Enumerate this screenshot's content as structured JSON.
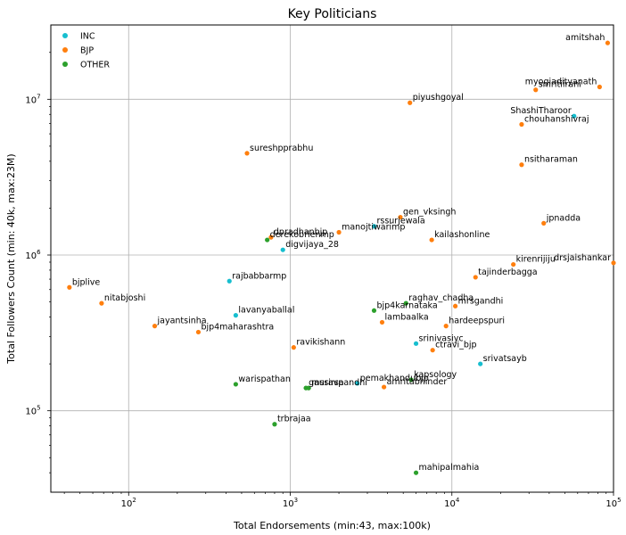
{
  "chart_data": {
    "type": "scatter",
    "title": "Key Politicians",
    "xlabel": "Total Endorsements (min:43, max:100k)",
    "ylabel": "Total Followers Count (min: 40k, max:23M)",
    "x_scale": "log",
    "y_scale": "log",
    "xlim": [
      33,
      100000
    ],
    "ylim": [
      30000,
      30000000
    ],
    "grid": true,
    "legend_position": "top-left",
    "x_ticks": [
      {
        "value": 100,
        "base": "10",
        "exp": "2"
      },
      {
        "value": 1000,
        "base": "10",
        "exp": "3"
      },
      {
        "value": 10000,
        "base": "10",
        "exp": "4"
      },
      {
        "value": 100000,
        "base": "10",
        "exp": "5"
      }
    ],
    "y_ticks": [
      {
        "value": 100000,
        "base": "10",
        "exp": "5"
      },
      {
        "value": 1000000,
        "base": "10",
        "exp": "6"
      },
      {
        "value": 10000000,
        "base": "10",
        "exp": "7"
      }
    ],
    "series": [
      {
        "name": "INC",
        "color": "#17becf",
        "points": [
          {
            "label": "ShashiTharoor",
            "x": 57000,
            "y": 7800000
          },
          {
            "label": "rssurjewala",
            "x": 3300,
            "y": 1530000
          },
          {
            "label": "digvijaya_28",
            "x": 900,
            "y": 1080000
          },
          {
            "label": "rajbabbarmp",
            "x": 420,
            "y": 680000
          },
          {
            "label": "lavanyaballal",
            "x": 460,
            "y": 410000
          },
          {
            "label": "srinivasiyc",
            "x": 6000,
            "y": 270000
          },
          {
            "label": "srivatsayb",
            "x": 15000,
            "y": 200000
          },
          {
            "label": "pemakhandubjp",
            "x": 2600,
            "y": 150000
          }
        ]
      },
      {
        "name": "BJP",
        "color": "#ff7f0e",
        "points": [
          {
            "label": "amitshah",
            "x": 92000,
            "y": 23000000
          },
          {
            "label": "myogiadityanath",
            "x": 82000,
            "y": 12000000
          },
          {
            "label": "smritiirani",
            "x": 33000,
            "y": 11500000
          },
          {
            "label": "piyushgoyal",
            "x": 5500,
            "y": 9500000
          },
          {
            "label": "chouhanshivraj",
            "x": 27000,
            "y": 6900000
          },
          {
            "label": "nsitharaman",
            "x": 27000,
            "y": 3800000
          },
          {
            "label": "sureshpprabhu",
            "x": 540,
            "y": 4500000
          },
          {
            "label": "jpnadda",
            "x": 37000,
            "y": 1600000
          },
          {
            "label": "gen_vksingh",
            "x": 4800,
            "y": 1750000
          },
          {
            "label": "manojtiwarimp",
            "x": 2000,
            "y": 1400000
          },
          {
            "label": "kailashonline",
            "x": 7500,
            "y": 1250000
          },
          {
            "label": "dpradhanbjp",
            "x": 760,
            "y": 1300000
          },
          {
            "label": "drsjaishankar",
            "x": 100000,
            "y": 890000
          },
          {
            "label": "kirenrijiju",
            "x": 24000,
            "y": 870000
          },
          {
            "label": "tajinderbagga",
            "x": 14000,
            "y": 720000
          },
          {
            "label": "bjplive",
            "x": 43,
            "y": 620000
          },
          {
            "label": "nitabjoshi",
            "x": 68,
            "y": 490000
          },
          {
            "label": "jayantsinha",
            "x": 145,
            "y": 350000
          },
          {
            "label": "bjp4maharashtra",
            "x": 270,
            "y": 320000
          },
          {
            "label": "mrsgandhi",
            "x": 10500,
            "y": 470000
          },
          {
            "label": "lambaalka",
            "x": 3700,
            "y": 370000
          },
          {
            "label": "hardeepspuri",
            "x": 9200,
            "y": 350000
          },
          {
            "label": "ravikishann",
            "x": 1050,
            "y": 255000
          },
          {
            "label": "ctravi_bjp",
            "x": 7600,
            "y": 245000
          },
          {
            "label": "amritabhinder",
            "x": 3800,
            "y": 142000
          }
        ]
      },
      {
        "name": "OTHER",
        "color": "#2ca02c",
        "points": [
          {
            "label": "derekobrienmp",
            "x": 720,
            "y": 1250000
          },
          {
            "label": "raghav_chadha",
            "x": 5200,
            "y": 490000
          },
          {
            "label": "bjp4karnataka",
            "x": 3300,
            "y": 440000
          },
          {
            "label": "kapsology",
            "x": 5600,
            "y": 158000
          },
          {
            "label": "warispathan",
            "x": 460,
            "y": 148000
          },
          {
            "label": "gauravpandhi",
            "x": 1250,
            "y": 140000
          },
          {
            "label": "mssirsa",
            "x": 1300,
            "y": 140000
          },
          {
            "label": "trbrajaa",
            "x": 800,
            "y": 82000
          },
          {
            "label": "mahipalmahia",
            "x": 6000,
            "y": 40000
          }
        ]
      }
    ]
  }
}
